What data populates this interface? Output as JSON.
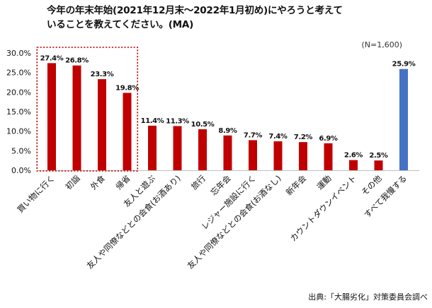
{
  "title_lines": [
    "今年の年末年始(2021年12月末〜2022年1月初め)にやろうと考えて",
    "いることを教えてください。(MA)"
  ],
  "sample_size": "(N=1,600)",
  "source": "出典:「大腸劣化」対策委員会調べ",
  "colors": {
    "bar": "#c00000",
    "highlight_bar": "#4472c4",
    "highlight_box": "#c00000",
    "axis": "#bfbfbf",
    "text": "#111111"
  },
  "chart_data": {
    "type": "bar",
    "categories": [
      "買い物に行く",
      "初詣",
      "外食",
      "帰省",
      "友人と遊ぶ",
      "友人や同僚などとの会食(お酒あり)",
      "旅行",
      "忘年会",
      "レジャー施設に行く",
      "友人や同僚などとの会食(お酒なし)",
      "新年会",
      "運動",
      "カウントダウンイベント",
      "その他",
      "すべて我慢する"
    ],
    "values": [
      27.4,
      26.8,
      23.3,
      19.8,
      11.4,
      11.3,
      10.5,
      8.9,
      7.7,
      7.4,
      7.2,
      6.9,
      2.6,
      2.5,
      25.9
    ],
    "value_labels": [
      "27.4%",
      "26.8%",
      "23.3%",
      "19.8%",
      "11.4%",
      "11.3%",
      "10.5%",
      "8.9%",
      "7.7%",
      "7.4%",
      "7.2%",
      "6.9%",
      "2.6%",
      "2.5%",
      "25.9%"
    ],
    "highlight_index": 14,
    "boxed_range": [
      0,
      3
    ],
    "ylim": [
      0,
      30
    ],
    "yticks": [
      "0.0%",
      "5.0%",
      "10.0%",
      "15.0%",
      "20.0%",
      "25.0%",
      "30.0%"
    ],
    "ytick_values": [
      0,
      5,
      10,
      15,
      20,
      25,
      30
    ],
    "grid": false,
    "xlabel": "",
    "ylabel": ""
  }
}
